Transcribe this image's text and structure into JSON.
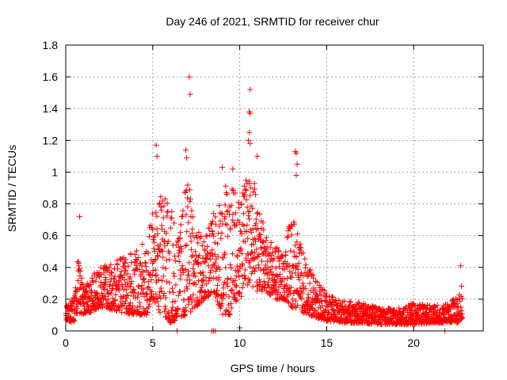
{
  "chart_data": {
    "type": "scatter",
    "title": "Day 246 of 2021, SRMTID for receiver chur",
    "xlabel": "GPS time / hours",
    "ylabel": "SRMTID / TECUs",
    "xlim": [
      0,
      24
    ],
    "ylim": [
      0,
      1.8
    ],
    "xticks": [
      0,
      5,
      10,
      15,
      20
    ],
    "xtick_labels": [
      "0",
      "5",
      "10",
      "15",
      "20"
    ],
    "yticks": [
      0,
      0.2,
      0.4,
      0.6,
      0.8,
      1,
      1.2,
      1.4,
      1.6,
      1.8
    ],
    "ytick_labels": [
      "0",
      "0.2",
      "0.4",
      "0.6",
      "0.8",
      "1",
      "1.2",
      "1.4",
      "1.6",
      "1.8"
    ],
    "grid": true,
    "marker": "+",
    "color": "#ff0000",
    "envelope_hours": [
      0,
      0.5,
      0.7,
      1,
      1.5,
      2,
      3,
      4,
      4.7,
      5,
      5.5,
      6,
      6.5,
      7,
      7.5,
      8,
      8.5,
      9,
      9.5,
      10,
      10.5,
      11,
      11.5,
      12,
      12.5,
      13,
      13.5,
      14,
      14.5,
      15,
      15.5,
      16,
      17,
      18,
      19,
      20,
      21,
      22,
      22.5,
      22.8
    ],
    "envelope_low": [
      0.05,
      0.06,
      0.1,
      0.1,
      0.12,
      0.15,
      0.12,
      0.1,
      0.1,
      0.2,
      0.1,
      0.05,
      0.08,
      0.1,
      0.15,
      0.2,
      0.25,
      0.1,
      0.1,
      0.2,
      0.3,
      0.25,
      0.25,
      0.2,
      0.2,
      0.15,
      0.12,
      0.1,
      0.08,
      0.06,
      0.06,
      0.05,
      0.05,
      0.04,
      0.04,
      0.04,
      0.05,
      0.05,
      0.05,
      0.08
    ],
    "envelope_high": [
      0.15,
      0.22,
      0.45,
      0.3,
      0.35,
      0.4,
      0.45,
      0.5,
      0.6,
      0.75,
      0.9,
      0.8,
      0.6,
      1.0,
      0.6,
      0.7,
      0.75,
      0.95,
      0.9,
      0.95,
      1.0,
      0.9,
      0.6,
      0.55,
      0.5,
      0.75,
      0.55,
      0.4,
      0.3,
      0.25,
      0.2,
      0.2,
      0.18,
      0.15,
      0.14,
      0.18,
      0.16,
      0.18,
      0.22,
      0.3
    ],
    "outliers": [
      {
        "x": 0.8,
        "y": 0.72
      },
      {
        "x": 5.2,
        "y": 1.17
      },
      {
        "x": 5.25,
        "y": 1.1
      },
      {
        "x": 6.9,
        "y": 1.14
      },
      {
        "x": 6.95,
        "y": 1.09
      },
      {
        "x": 7.1,
        "y": 1.6
      },
      {
        "x": 7.15,
        "y": 1.49
      },
      {
        "x": 9.0,
        "y": 1.03
      },
      {
        "x": 9.6,
        "y": 1.02
      },
      {
        "x": 10.6,
        "y": 1.52
      },
      {
        "x": 10.55,
        "y": 1.38
      },
      {
        "x": 10.6,
        "y": 1.37
      },
      {
        "x": 10.55,
        "y": 1.25
      },
      {
        "x": 10.5,
        "y": 1.2
      },
      {
        "x": 10.6,
        "y": 1.18
      },
      {
        "x": 11.0,
        "y": 1.1
      },
      {
        "x": 13.2,
        "y": 1.13
      },
      {
        "x": 13.25,
        "y": 1.12
      },
      {
        "x": 13.3,
        "y": 1.05
      },
      {
        "x": 13.25,
        "y": 0.98
      },
      {
        "x": 22.7,
        "y": 0.41
      },
      {
        "x": 8.4,
        "y": 0.0
      },
      {
        "x": 8.5,
        "y": 0.0
      },
      {
        "x": 8.6,
        "y": 0.0
      },
      {
        "x": 6.4,
        "y": 0.0
      },
      {
        "x": 10.0,
        "y": 0.02
      },
      {
        "x": 21.8,
        "y": 0.0
      }
    ]
  }
}
